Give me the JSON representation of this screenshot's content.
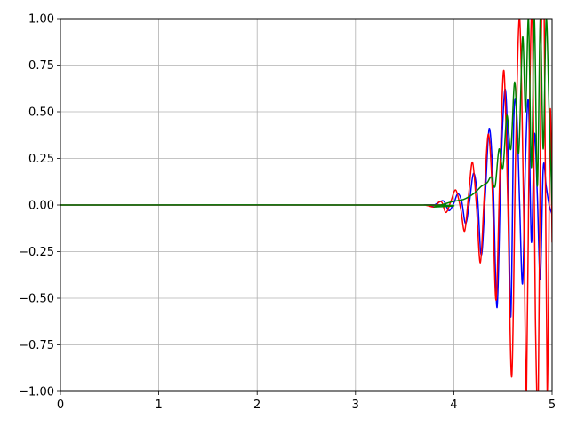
{
  "chart_data": {
    "type": "line",
    "title": "",
    "xlabel": "",
    "ylabel": "",
    "xlim": [
      0,
      5
    ],
    "ylim": [
      -1,
      1
    ],
    "grid": true,
    "x_ticks": [
      0,
      1,
      2,
      3,
      4,
      5
    ],
    "x_tick_labels": [
      "0",
      "1",
      "2",
      "3",
      "4",
      "5"
    ],
    "y_ticks": [
      -1.0,
      -0.75,
      -0.5,
      -0.25,
      0.0,
      0.25,
      0.5,
      0.75,
      1.0
    ],
    "y_tick_labels": [
      "−1.00",
      "−0.75",
      "−0.50",
      "−0.25",
      "0.00",
      "0.25",
      "0.50",
      "0.75",
      "1.00"
    ],
    "series": [
      {
        "name": "blue",
        "color": "#0000ff",
        "x": [
          0,
          3.6,
          3.7,
          3.78,
          3.85,
          3.9,
          3.95,
          4.0,
          4.04,
          4.08,
          4.12,
          4.16,
          4.2,
          4.24,
          4.28,
          4.32,
          4.36,
          4.4,
          4.44,
          4.48,
          4.52,
          4.55,
          4.58,
          4.61,
          4.64,
          4.67,
          4.7,
          4.73,
          4.76,
          4.79,
          4.82,
          4.85,
          4.88,
          4.91,
          4.94,
          4.97,
          5.0
        ],
        "y": [
          0,
          0,
          0.001,
          -0.005,
          0.015,
          0.02,
          -0.03,
          0.01,
          0.06,
          0.02,
          -0.1,
          0.02,
          0.17,
          0.05,
          -0.27,
          0.05,
          0.41,
          0.12,
          -0.55,
          0.2,
          0.62,
          0.3,
          -0.6,
          0.45,
          0.5,
          0.0,
          -0.42,
          0.25,
          0.55,
          -0.2,
          0.38,
          0.05,
          -0.4,
          0.2,
          0.1,
          0.0,
          -0.05
        ]
      },
      {
        "name": "red",
        "color": "#ff0000",
        "x": [
          0,
          3.6,
          3.72,
          3.8,
          3.87,
          3.92,
          3.97,
          4.02,
          4.07,
          4.11,
          4.15,
          4.19,
          4.23,
          4.27,
          4.31,
          4.35,
          4.39,
          4.43,
          4.47,
          4.51,
          4.55,
          4.59,
          4.63,
          4.67,
          4.71,
          4.74,
          4.77,
          4.8,
          4.83,
          4.86,
          4.89,
          4.92,
          4.95,
          4.98,
          5.0
        ],
        "y": [
          0,
          0,
          -0.002,
          -0.01,
          0.02,
          -0.04,
          0.02,
          0.08,
          -0.02,
          -0.14,
          0.05,
          0.23,
          0.0,
          -0.31,
          0.05,
          0.38,
          0.1,
          -0.51,
          0.2,
          0.72,
          0.0,
          -0.92,
          0.3,
          1.0,
          0.0,
          -1.0,
          0.5,
          1.0,
          -0.6,
          -1.0,
          0.9,
          1.0,
          -1.0,
          0.5,
          -0.2
        ]
      },
      {
        "name": "green",
        "color": "#008000",
        "x": [
          0,
          3.7,
          3.8,
          3.9,
          4.0,
          4.1,
          4.2,
          4.28,
          4.34,
          4.38,
          4.42,
          4.46,
          4.5,
          4.54,
          4.58,
          4.62,
          4.66,
          4.7,
          4.73,
          4.76,
          4.79,
          4.82,
          4.85,
          4.88,
          4.91,
          4.94,
          4.97,
          5.0
        ],
        "y": [
          0,
          0,
          -0.01,
          0.005,
          0.02,
          0.03,
          0.06,
          0.1,
          0.12,
          0.15,
          0.1,
          0.3,
          0.2,
          0.48,
          0.3,
          0.66,
          0.28,
          0.9,
          0.5,
          1.0,
          0.2,
          1.0,
          0.1,
          1.0,
          0.3,
          1.0,
          0.5,
          0.0
        ]
      }
    ]
  }
}
